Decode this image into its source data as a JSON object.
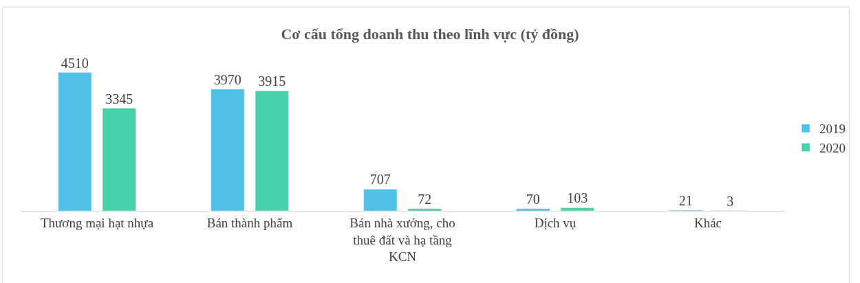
{
  "chart_data": {
    "type": "bar",
    "title": "Cơ cấu tổng doanh thu theo lĩnh vực (tỷ đồng)",
    "categories": [
      "Thương mại hạt nhựa",
      "Bán thành phẩm",
      "Bán nhà xưởng, cho thuê đất và hạ tầng KCN",
      "Dịch vụ",
      "Khác"
    ],
    "series": [
      {
        "name": "2019",
        "color": "#4fc1e9",
        "values": [
          4510,
          3970,
          707,
          70,
          21
        ]
      },
      {
        "name": "2020",
        "color": "#48d1aa",
        "values": [
          3345,
          3915,
          72,
          103,
          3
        ]
      }
    ],
    "data_labels": true,
    "legend": "right"
  }
}
